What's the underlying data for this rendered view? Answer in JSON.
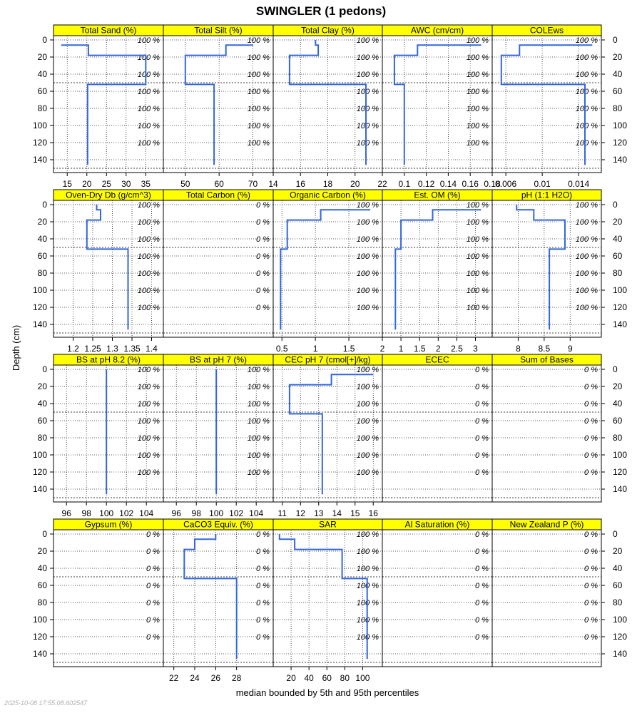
{
  "chart_data": {
    "type": "line",
    "title": "SWINGLER (1 pedons)",
    "xlabel": "median bounded by 5th and 95th percentiles",
    "ylabel": "Depth (cm)",
    "timestamp": "2025-10-08 17:55:08.602547",
    "y_axis": {
      "reversed": true,
      "ylim": [
        155,
        -5
      ],
      "ticks": [
        0,
        20,
        40,
        60,
        80,
        100,
        120,
        140
      ]
    },
    "line_color": "#3366dd",
    "strip_color": "#ffff00",
    "grid": "dotted",
    "horizontal_boundaries": [
      50
    ],
    "panels": [
      {
        "name": "Total Sand (%)",
        "xlim": [
          11.5,
          39.5
        ],
        "xticks": [
          15,
          20,
          25,
          30,
          35
        ],
        "ticks_side": "bottom",
        "pct": [
          "100 %",
          "100 %",
          "100 %",
          "100 %",
          "100 %",
          "100 %",
          "100 %"
        ],
        "profile": [
          [
            13.5,
            6
          ],
          [
            20.4,
            6
          ],
          [
            20.4,
            18
          ],
          [
            35,
            18
          ],
          [
            35,
            52
          ],
          [
            20.2,
            52
          ],
          [
            20.2,
            146
          ]
        ]
      },
      {
        "name": "Total Silt (%)",
        "xlim": [
          43.5,
          76
        ],
        "xticks": [
          50,
          60,
          70
        ],
        "ticks_side": "bottom",
        "pct": [
          "100 %",
          "100 %",
          "100 %",
          "100 %",
          "100 %",
          "100 %",
          "100 %"
        ],
        "profile": [
          [
            70,
            6
          ],
          [
            62,
            6
          ],
          [
            62,
            18
          ],
          [
            50,
            18
          ],
          [
            50,
            52
          ],
          [
            58.5,
            52
          ],
          [
            58.5,
            146
          ]
        ]
      },
      {
        "name": "Total Clay (%)",
        "xlim": [
          14,
          22
        ],
        "xticks": [
          14,
          16,
          18,
          20,
          22
        ],
        "ticks_side": "bottom",
        "pct": [
          "100 %",
          "100 %",
          "100 %",
          "100 %",
          "100 %",
          "100 %",
          "100 %"
        ],
        "profile": [
          [
            17.1,
            0
          ],
          [
            17.1,
            6
          ],
          [
            17.3,
            6
          ],
          [
            17.3,
            18
          ],
          [
            15.2,
            18
          ],
          [
            15.2,
            52
          ],
          [
            20.8,
            52
          ],
          [
            20.8,
            146
          ]
        ]
      },
      {
        "name": "AWC (cm/cm)",
        "xlim": [
          0.08,
          0.18
        ],
        "xticks": [
          0.1,
          0.12,
          0.14,
          0.16,
          0.18
        ],
        "ticks_side": "bottom",
        "pct": [
          "100 %",
          "100 %",
          "100 %",
          "100 %",
          "100 %",
          "100 %",
          "100 %"
        ],
        "profile": [
          [
            0.17,
            6
          ],
          [
            0.112,
            6
          ],
          [
            0.112,
            18
          ],
          [
            0.091,
            18
          ],
          [
            0.091,
            52
          ],
          [
            0.1,
            52
          ],
          [
            0.1,
            146
          ]
        ]
      },
      {
        "name": "COLEws",
        "xlim": [
          0.0045,
          0.0165
        ],
        "xticks": [
          0.006,
          0.01,
          0.014
        ],
        "ticks_side": "bottom",
        "pct": [
          "100 %",
          "100 %",
          "100 %",
          "100 %",
          "100 %",
          "100 %",
          "100 %"
        ],
        "profile": [
          [
            0.0155,
            6
          ],
          [
            0.0075,
            6
          ],
          [
            0.0075,
            18
          ],
          [
            0.0055,
            18
          ],
          [
            0.0055,
            52
          ],
          [
            0.0147,
            52
          ],
          [
            0.0147,
            146
          ]
        ]
      },
      {
        "name": "Oven-Dry Db (g/cm^3)",
        "xlim": [
          1.15,
          1.43
        ],
        "xticks": [
          1.2,
          1.25,
          1.3,
          1.35,
          1.4
        ],
        "ticks_side": "bottom",
        "pct": [
          "100 %",
          "100 %",
          "100 %",
          "100 %",
          "100 %",
          "100 %",
          "100 %"
        ],
        "profile": [
          [
            1.26,
            0
          ],
          [
            1.26,
            6
          ],
          [
            1.27,
            6
          ],
          [
            1.27,
            18
          ],
          [
            1.235,
            18
          ],
          [
            1.235,
            52
          ],
          [
            1.34,
            52
          ],
          [
            1.34,
            146
          ]
        ]
      },
      {
        "name": "Total Carbon (%)",
        "xlim": [
          0,
          1
        ],
        "xticks": [],
        "ticks_side": "bottom",
        "pct": [
          "0 %",
          "0 %",
          "0 %",
          "0 %",
          "0 %",
          "0 %",
          "0 %"
        ],
        "profile": []
      },
      {
        "name": "Organic Carbon (%)",
        "xlim": [
          0.37,
          2.0
        ],
        "xticks": [
          0.5,
          1.0,
          1.5,
          2.0
        ],
        "ticks_side": "bottom",
        "pct": [
          "100 %",
          "100 %",
          "100 %",
          "100 %",
          "100 %",
          "100 %",
          "100 %"
        ],
        "profile": [
          [
            1.82,
            6
          ],
          [
            1.08,
            6
          ],
          [
            1.08,
            18
          ],
          [
            0.58,
            18
          ],
          [
            0.58,
            52
          ],
          [
            0.48,
            52
          ],
          [
            0.48,
            146
          ]
        ]
      },
      {
        "name": "Est. OM (%)",
        "xlim": [
          0.5,
          3.45
        ],
        "xticks": [
          1.0,
          1.5,
          2.0,
          2.5,
          3.0
        ],
        "ticks_side": "bottom",
        "pct": [
          "100 %",
          "100 %",
          "100 %",
          "100 %",
          "100 %",
          "100 %",
          "100 %"
        ],
        "profile": [
          [
            3.15,
            6
          ],
          [
            1.85,
            6
          ],
          [
            1.85,
            18
          ],
          [
            1.0,
            18
          ],
          [
            1.0,
            52
          ],
          [
            0.85,
            52
          ],
          [
            0.85,
            146
          ]
        ]
      },
      {
        "name": "pH (1:1 H2O)",
        "xlim": [
          7.5,
          9.6
        ],
        "xticks": [
          8.0,
          8.5,
          9.0
        ],
        "ticks_side": "bottom",
        "pct": [
          "100 %",
          "100 %",
          "100 %",
          "100 %",
          "100 %",
          "100 %",
          "100 %"
        ],
        "profile": [
          [
            7.97,
            0
          ],
          [
            7.97,
            6
          ],
          [
            8.3,
            6
          ],
          [
            8.3,
            18
          ],
          [
            8.9,
            18
          ],
          [
            8.9,
            52
          ],
          [
            8.6,
            52
          ],
          [
            8.6,
            146
          ]
        ]
      },
      {
        "name": "BS at pH 8.2 (%)",
        "xlim": [
          94.7,
          105.7
        ],
        "xticks": [
          96,
          98,
          100,
          102,
          104
        ],
        "ticks_side": "bottom",
        "pct": [
          "100 %",
          "100 %",
          "100 %",
          "100 %",
          "100 %",
          "100 %",
          "100 %"
        ],
        "profile": [
          [
            100,
            0
          ],
          [
            100,
            146
          ]
        ]
      },
      {
        "name": "BS at pH 7 (%)",
        "xlim": [
          94.7,
          105.7
        ],
        "xticks": [
          96,
          98,
          100,
          102,
          104
        ],
        "ticks_side": "bottom",
        "pct": [
          "100 %",
          "100 %",
          "100 %",
          "100 %",
          "100 %",
          "100 %",
          "100 %"
        ],
        "profile": [
          [
            100,
            0
          ],
          [
            100,
            146
          ]
        ]
      },
      {
        "name": "CEC pH 7 (cmol[+]/kg)",
        "xlim": [
          10.5,
          16.5
        ],
        "xticks": [
          11,
          12,
          13,
          14,
          15,
          16
        ],
        "ticks_side": "bottom",
        "pct": [
          "100 %",
          "100 %",
          "100 %",
          "100 %",
          "100 %",
          "100 %",
          "100 %"
        ],
        "profile": [
          [
            16,
            6
          ],
          [
            13.7,
            6
          ],
          [
            13.7,
            18
          ],
          [
            11.4,
            18
          ],
          [
            11.4,
            52
          ],
          [
            13.2,
            52
          ],
          [
            13.2,
            146
          ]
        ]
      },
      {
        "name": "ECEC",
        "xlim": [
          0,
          1
        ],
        "xticks": [],
        "ticks_side": "bottom",
        "pct": [
          "0 %",
          "0 %",
          "0 %",
          "0 %",
          "0 %",
          "0 %",
          "0 %"
        ],
        "profile": []
      },
      {
        "name": "Sum of Bases",
        "xlim": [
          0,
          1
        ],
        "xticks": [],
        "ticks_side": "bottom",
        "pct": [
          "0 %",
          "0 %",
          "0 %",
          "0 %",
          "0 %",
          "0 %",
          "0 %"
        ],
        "profile": []
      },
      {
        "name": "Gypsum (%)",
        "xlim": [
          0,
          1
        ],
        "xticks": [],
        "ticks_side": "bottom",
        "pct": [
          "0 %",
          "0 %",
          "0 %",
          "0 %",
          "0 %",
          "0 %",
          "0 %"
        ],
        "profile": []
      },
      {
        "name": "CaCO3 Equiv. (%)",
        "xlim": [
          21,
          31.5
        ],
        "xticks": [
          22,
          24,
          26,
          28
        ],
        "ticks_side": "bottom",
        "pct": [
          "0 %",
          "0 %",
          "0 %",
          "0 %",
          "0 %",
          "0 %",
          "0 %"
        ],
        "profile": [
          [
            26,
            0
          ],
          [
            26,
            6
          ],
          [
            24,
            6
          ],
          [
            24,
            18
          ],
          [
            23,
            18
          ],
          [
            23,
            52
          ],
          [
            28,
            52
          ],
          [
            28,
            146
          ]
        ]
      },
      {
        "name": "SAR",
        "xlim": [
          0,
          122
        ],
        "xticks": [
          20,
          40,
          60,
          80,
          100
        ],
        "ticks_side": "bottom",
        "pct": [
          "100 %",
          "100 %",
          "100 %",
          "100 %",
          "100 %",
          "100 %",
          "100 %"
        ],
        "profile": [
          [
            7,
            0
          ],
          [
            7,
            6
          ],
          [
            24,
            6
          ],
          [
            24,
            18
          ],
          [
            77,
            18
          ],
          [
            77,
            52
          ],
          [
            105,
            52
          ],
          [
            105,
            146
          ]
        ]
      },
      {
        "name": "Al Saturation (%)",
        "xlim": [
          0,
          1
        ],
        "xticks": [],
        "ticks_side": "bottom",
        "pct": [
          "0 %",
          "0 %",
          "0 %",
          "0 %",
          "0 %",
          "0 %",
          "0 %"
        ],
        "profile": []
      },
      {
        "name": "New Zealand P (%)",
        "xlim": [
          0,
          1
        ],
        "xticks": [],
        "ticks_side": "bottom",
        "pct": [
          "0 %",
          "0 %",
          "0 %",
          "0 %",
          "0 %",
          "0 %",
          "0 %"
        ],
        "profile": []
      }
    ]
  }
}
